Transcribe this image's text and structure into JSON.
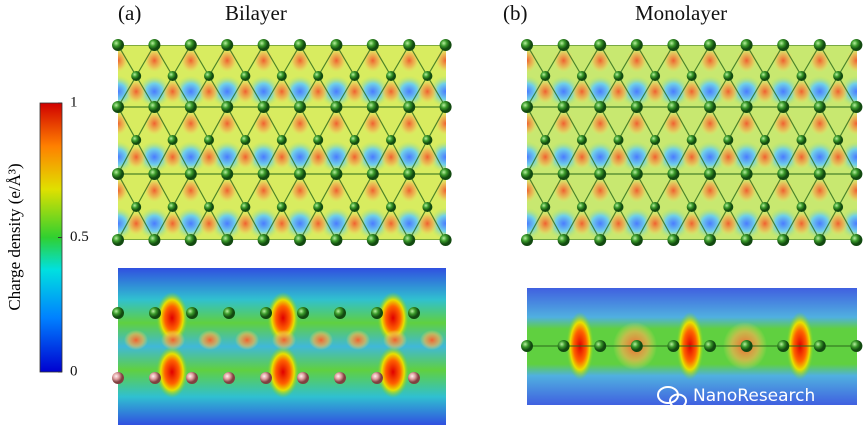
{
  "figure": {
    "panels": [
      {
        "label": "(a)",
        "title": "Bilayer"
      },
      {
        "label": "(b)",
        "title": "Monolayer"
      }
    ],
    "colorbar": {
      "label": "Charge density (e/Å³)",
      "lim": [
        0,
        1
      ],
      "ticks": [
        0,
        0.5,
        1
      ]
    },
    "watermark": "NanoResearch"
  }
}
